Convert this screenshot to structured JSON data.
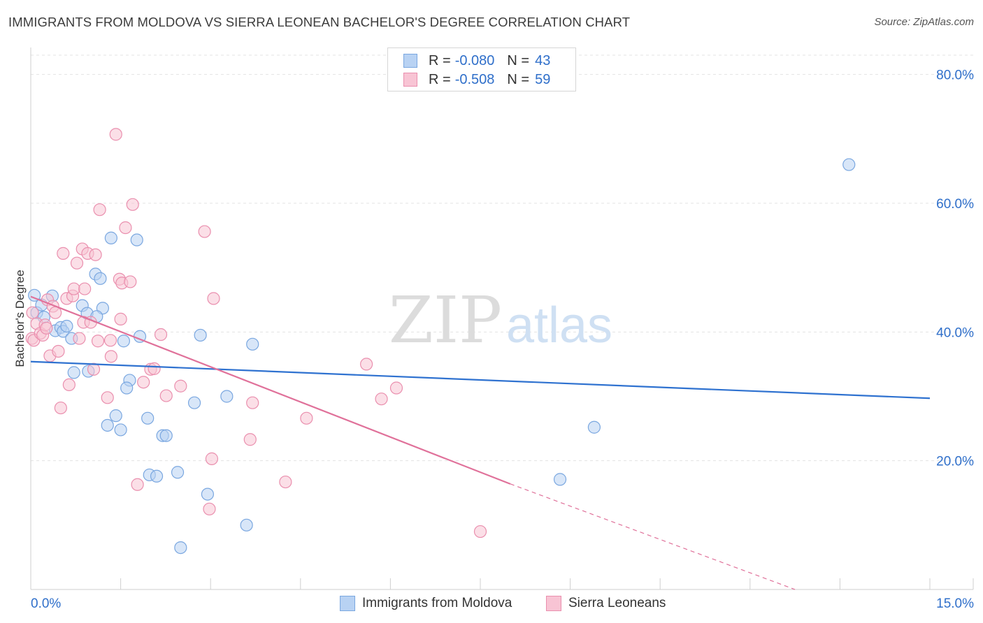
{
  "title": "IMMIGRANTS FROM MOLDOVA VS SIERRA LEONEAN BACHELOR'S DEGREE CORRELATION CHART",
  "source": "Source: ZipAtlas.com",
  "watermark": {
    "zip": "ZIP",
    "atlas": "atlas"
  },
  "legend": {
    "series1": {
      "r_label": "R =",
      "r_value": "-0.080",
      "n_label": "N =",
      "n_value": "43"
    },
    "series2": {
      "r_label": "R =",
      "r_value": "-0.508",
      "n_label": "N =",
      "n_value": "59"
    }
  },
  "bottom_legend": {
    "series1": "Immigrants from Moldova",
    "series2": "Sierra Leoneans"
  },
  "colors": {
    "blue_fill": "#b8d2f3",
    "blue_stroke": "#7aa7e0",
    "blue_line": "#2f72d0",
    "pink_fill": "#f8c4d4",
    "pink_stroke": "#ea8fae",
    "pink_line": "#e0719a",
    "axis_text": "#2f6fca",
    "grid": "#e3e3e3"
  },
  "chart_data": {
    "type": "scatter",
    "title": "IMMIGRANTS FROM MOLDOVA VS SIERRA LEONEAN BACHELOR'S DEGREE CORRELATION CHART",
    "xlabel": "",
    "ylabel": "Bachelor's Degree",
    "xlim": [
      0,
      15
    ],
    "ylim": [
      0,
      83
    ],
    "x_tick_labels": [
      "0.0%",
      "15.0%"
    ],
    "y_ticks": [
      20,
      40,
      60,
      80
    ],
    "y_tick_labels": [
      "20.0%",
      "40.0%",
      "60.0%",
      "80.0%"
    ],
    "grid": true,
    "series": [
      {
        "name": "Immigrants from Moldova",
        "color": "#b8d2f3",
        "points": [
          [
            0.06,
            45.7
          ],
          [
            0.1,
            43.0
          ],
          [
            0.18,
            44.2
          ],
          [
            0.36,
            45.6
          ],
          [
            0.41,
            40.2
          ],
          [
            0.5,
            40.7
          ],
          [
            0.54,
            40.1
          ],
          [
            0.6,
            40.9
          ],
          [
            0.68,
            39.0
          ],
          [
            0.72,
            33.7
          ],
          [
            0.86,
            44.1
          ],
          [
            0.94,
            42.9
          ],
          [
            0.96,
            33.9
          ],
          [
            1.08,
            49.0
          ],
          [
            1.16,
            48.3
          ],
          [
            1.2,
            43.7
          ],
          [
            1.28,
            25.5
          ],
          [
            1.34,
            54.6
          ],
          [
            1.42,
            27.0
          ],
          [
            1.5,
            24.8
          ],
          [
            1.55,
            38.6
          ],
          [
            1.65,
            32.5
          ],
          [
            1.6,
            31.3
          ],
          [
            1.77,
            54.3
          ],
          [
            1.82,
            39.3
          ],
          [
            1.95,
            26.6
          ],
          [
            1.98,
            17.8
          ],
          [
            2.1,
            17.6
          ],
          [
            2.2,
            23.9
          ],
          [
            2.26,
            23.9
          ],
          [
            2.45,
            18.2
          ],
          [
            2.5,
            6.5
          ],
          [
            2.73,
            29.0
          ],
          [
            2.83,
            39.5
          ],
          [
            2.95,
            14.8
          ],
          [
            3.27,
            30.0
          ],
          [
            3.6,
            10.0
          ],
          [
            3.7,
            38.1
          ],
          [
            9.4,
            25.2
          ],
          [
            13.65,
            66.0
          ],
          [
            8.83,
            17.1
          ],
          [
            0.22,
            42.3
          ],
          [
            1.1,
            42.4
          ]
        ],
        "trend": {
          "x": [
            0,
            15
          ],
          "y": [
            35.4,
            29.7
          ]
        }
      },
      {
        "name": "Sierra Leoneans",
        "color": "#f8c4d4",
        "points": [
          [
            0.02,
            39.0
          ],
          [
            0.05,
            38.7
          ],
          [
            0.1,
            41.3
          ],
          [
            0.16,
            39.8
          ],
          [
            0.2,
            39.5
          ],
          [
            0.24,
            41.1
          ],
          [
            0.28,
            45.0
          ],
          [
            0.32,
            36.3
          ],
          [
            0.37,
            44.0
          ],
          [
            0.41,
            43.0
          ],
          [
            0.46,
            37.0
          ],
          [
            0.5,
            28.2
          ],
          [
            0.54,
            52.2
          ],
          [
            0.6,
            45.2
          ],
          [
            0.64,
            31.8
          ],
          [
            0.7,
            45.6
          ],
          [
            0.72,
            46.7
          ],
          [
            0.77,
            50.7
          ],
          [
            0.81,
            39.0
          ],
          [
            0.86,
            52.9
          ],
          [
            0.88,
            41.5
          ],
          [
            0.9,
            46.7
          ],
          [
            0.95,
            52.2
          ],
          [
            1.0,
            41.5
          ],
          [
            1.05,
            34.2
          ],
          [
            1.08,
            52.0
          ],
          [
            1.12,
            38.6
          ],
          [
            1.15,
            59.0
          ],
          [
            1.28,
            29.8
          ],
          [
            1.33,
            38.7
          ],
          [
            1.34,
            36.2
          ],
          [
            1.42,
            70.7
          ],
          [
            1.48,
            48.2
          ],
          [
            1.5,
            42.0
          ],
          [
            1.52,
            47.6
          ],
          [
            1.58,
            56.2
          ],
          [
            1.66,
            47.8
          ],
          [
            1.7,
            59.8
          ],
          [
            1.78,
            16.3
          ],
          [
            1.88,
            32.2
          ],
          [
            2.0,
            34.2
          ],
          [
            2.06,
            34.3
          ],
          [
            2.17,
            39.6
          ],
          [
            2.26,
            30.1
          ],
          [
            2.5,
            31.6
          ],
          [
            2.9,
            55.6
          ],
          [
            2.98,
            12.5
          ],
          [
            3.02,
            20.3
          ],
          [
            3.05,
            45.2
          ],
          [
            3.66,
            23.3
          ],
          [
            3.7,
            29.0
          ],
          [
            4.25,
            16.7
          ],
          [
            4.6,
            26.6
          ],
          [
            5.6,
            35.0
          ],
          [
            5.85,
            29.6
          ],
          [
            6.1,
            31.3
          ],
          [
            7.5,
            9.0
          ],
          [
            0.03,
            43.0
          ],
          [
            0.26,
            40.6
          ]
        ],
        "trend": {
          "x": [
            0,
            8.0
          ],
          "y": [
            45.5,
            16.4
          ]
        },
        "trend_dashed": {
          "x": [
            8.0,
            12.75
          ],
          "y": [
            16.4,
            0
          ]
        }
      }
    ]
  }
}
